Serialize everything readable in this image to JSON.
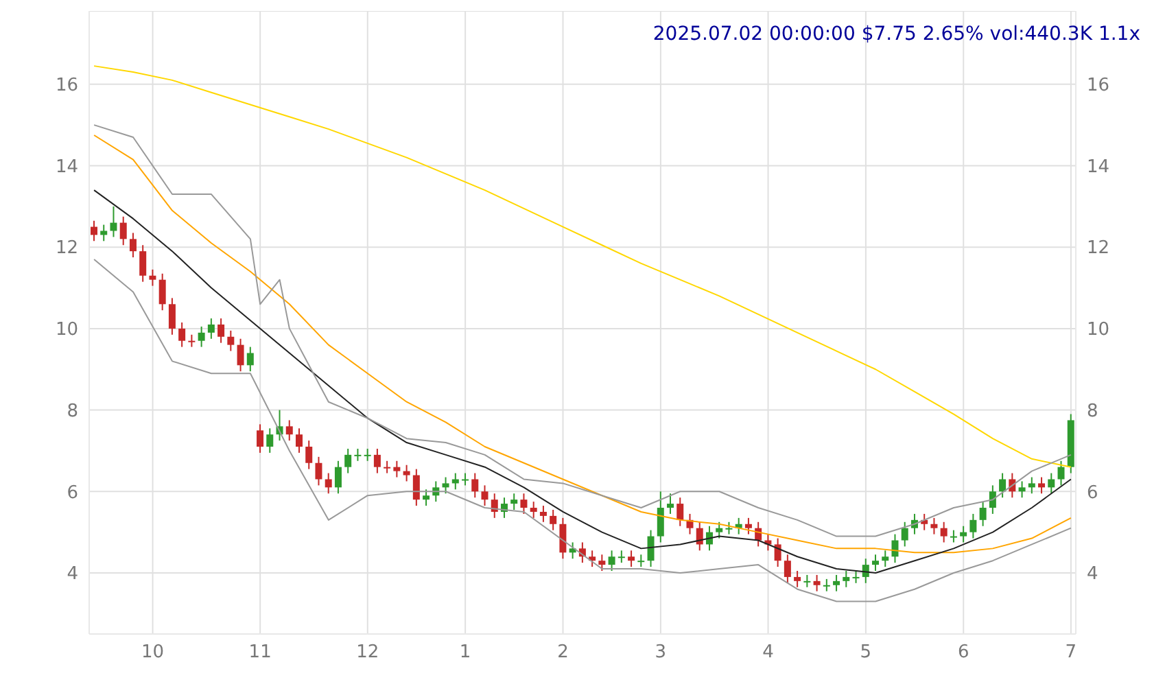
{
  "chart_data": {
    "type": "candlestick",
    "title": "2025.07.02 00:00:00 $7.75 2.65% vol:440.3K 1.1x",
    "categories": [
      null,
      null,
      null,
      null,
      null,
      null,
      "10",
      null,
      null,
      null,
      null,
      null,
      null,
      null,
      null,
      null,
      null,
      "11",
      null,
      null,
      null,
      null,
      null,
      null,
      null,
      null,
      null,
      null,
      "12",
      null,
      null,
      null,
      null,
      null,
      null,
      null,
      null,
      null,
      "1",
      null,
      null,
      null,
      null,
      null,
      null,
      null,
      null,
      null,
      "2",
      null,
      null,
      null,
      null,
      null,
      null,
      null,
      null,
      null,
      "3",
      null,
      null,
      null,
      null,
      null,
      null,
      null,
      null,
      null,
      null,
      "4",
      null,
      null,
      null,
      null,
      null,
      null,
      null,
      null,
      null,
      "5",
      null,
      null,
      null,
      null,
      null,
      null,
      null,
      null,
      null,
      "6",
      null,
      null,
      null,
      null,
      null,
      null,
      null,
      null,
      null,
      null,
      "7"
    ],
    "ohlc": [
      [
        12.5,
        12.65,
        12.15,
        12.3
      ],
      [
        12.3,
        12.55,
        12.15,
        12.4
      ],
      [
        12.4,
        13.0,
        12.25,
        12.6
      ],
      [
        12.6,
        12.75,
        12.05,
        12.2
      ],
      [
        12.2,
        12.35,
        11.75,
        11.9
      ],
      [
        11.9,
        12.05,
        11.15,
        11.3
      ],
      [
        11.3,
        11.45,
        11.05,
        11.2
      ],
      [
        11.2,
        11.35,
        10.45,
        10.6
      ],
      [
        10.6,
        10.75,
        9.85,
        10.0
      ],
      [
        10.0,
        10.15,
        9.55,
        9.7
      ],
      [
        9.7,
        9.85,
        9.55,
        9.7
      ],
      [
        9.7,
        10.05,
        9.55,
        9.9
      ],
      [
        9.9,
        10.25,
        9.75,
        10.1
      ],
      [
        10.1,
        10.25,
        9.65,
        9.8
      ],
      [
        9.8,
        9.95,
        9.45,
        9.6
      ],
      [
        9.6,
        9.75,
        8.95,
        9.1
      ],
      [
        9.1,
        9.55,
        8.95,
        9.4
      ],
      [
        7.5,
        7.65,
        6.95,
        7.1
      ],
      [
        7.1,
        7.55,
        6.95,
        7.4
      ],
      [
        7.4,
        8.0,
        7.25,
        7.6
      ],
      [
        7.6,
        7.75,
        7.25,
        7.4
      ],
      [
        7.4,
        7.55,
        6.95,
        7.1
      ],
      [
        7.1,
        7.25,
        6.55,
        6.7
      ],
      [
        6.7,
        6.85,
        6.15,
        6.3
      ],
      [
        6.3,
        6.45,
        5.95,
        6.1
      ],
      [
        6.1,
        6.75,
        5.95,
        6.6
      ],
      [
        6.6,
        7.05,
        6.45,
        6.9
      ],
      [
        6.9,
        7.05,
        6.75,
        6.9
      ],
      [
        6.9,
        7.05,
        6.75,
        6.9
      ],
      [
        6.9,
        7.05,
        6.45,
        6.6
      ],
      [
        6.6,
        6.75,
        6.45,
        6.6
      ],
      [
        6.6,
        6.75,
        6.35,
        6.5
      ],
      [
        6.5,
        6.65,
        6.25,
        6.4
      ],
      [
        6.4,
        6.55,
        5.65,
        5.8
      ],
      [
        5.8,
        6.05,
        5.65,
        5.9
      ],
      [
        5.9,
        6.25,
        5.75,
        6.1
      ],
      [
        6.1,
        6.35,
        5.95,
        6.2
      ],
      [
        6.2,
        6.45,
        6.05,
        6.3
      ],
      [
        6.3,
        6.45,
        6.15,
        6.3
      ],
      [
        6.3,
        6.45,
        5.85,
        6.0
      ],
      [
        6.0,
        6.15,
        5.65,
        5.8
      ],
      [
        5.8,
        5.95,
        5.35,
        5.5
      ],
      [
        5.5,
        5.85,
        5.35,
        5.7
      ],
      [
        5.7,
        5.95,
        5.55,
        5.8
      ],
      [
        5.8,
        5.95,
        5.45,
        5.6
      ],
      [
        5.6,
        5.75,
        5.35,
        5.5
      ],
      [
        5.5,
        5.65,
        5.25,
        5.4
      ],
      [
        5.4,
        5.55,
        5.05,
        5.2
      ],
      [
        5.2,
        5.35,
        4.35,
        4.5
      ],
      [
        4.5,
        4.75,
        4.35,
        4.6
      ],
      [
        4.6,
        4.75,
        4.25,
        4.4
      ],
      [
        4.4,
        4.55,
        4.15,
        4.3
      ],
      [
        4.3,
        4.45,
        4.05,
        4.2
      ],
      [
        4.2,
        4.55,
        4.05,
        4.4
      ],
      [
        4.4,
        4.55,
        4.25,
        4.4
      ],
      [
        4.4,
        4.55,
        4.15,
        4.3
      ],
      [
        4.3,
        4.45,
        4.15,
        4.3
      ],
      [
        4.3,
        5.05,
        4.15,
        4.9
      ],
      [
        4.9,
        6.0,
        4.75,
        5.6
      ],
      [
        5.6,
        5.95,
        5.45,
        5.7
      ],
      [
        5.7,
        5.85,
        5.15,
        5.3
      ],
      [
        5.3,
        5.45,
        4.95,
        5.1
      ],
      [
        5.1,
        5.25,
        4.55,
        4.7
      ],
      [
        4.7,
        5.15,
        4.55,
        5.0
      ],
      [
        5.0,
        5.25,
        4.85,
        5.1
      ],
      [
        5.1,
        5.25,
        4.95,
        5.1
      ],
      [
        5.1,
        5.35,
        4.95,
        5.2
      ],
      [
        5.2,
        5.35,
        4.95,
        5.1
      ],
      [
        5.1,
        5.25,
        4.65,
        4.8
      ],
      [
        4.8,
        4.95,
        4.55,
        4.7
      ],
      [
        4.7,
        4.85,
        4.15,
        4.3
      ],
      [
        4.3,
        4.45,
        3.75,
        3.9
      ],
      [
        3.9,
        4.05,
        3.65,
        3.8
      ],
      [
        3.8,
        3.95,
        3.65,
        3.8
      ],
      [
        3.8,
        3.95,
        3.55,
        3.7
      ],
      [
        3.7,
        3.85,
        3.55,
        3.7
      ],
      [
        3.7,
        3.95,
        3.55,
        3.8
      ],
      [
        3.8,
        4.05,
        3.65,
        3.9
      ],
      [
        3.9,
        4.05,
        3.75,
        3.9
      ],
      [
        3.9,
        4.35,
        3.75,
        4.2
      ],
      [
        4.2,
        4.45,
        4.05,
        4.3
      ],
      [
        4.3,
        4.55,
        4.15,
        4.4
      ],
      [
        4.4,
        4.95,
        4.25,
        4.8
      ],
      [
        4.8,
        5.25,
        4.65,
        5.1
      ],
      [
        5.1,
        5.45,
        4.95,
        5.3
      ],
      [
        5.3,
        5.45,
        5.05,
        5.2
      ],
      [
        5.2,
        5.35,
        4.95,
        5.1
      ],
      [
        5.1,
        5.25,
        4.75,
        4.9
      ],
      [
        4.9,
        5.05,
        4.75,
        4.9
      ],
      [
        4.9,
        5.15,
        4.75,
        5.0
      ],
      [
        5.0,
        5.45,
        4.85,
        5.3
      ],
      [
        5.3,
        5.75,
        5.15,
        5.6
      ],
      [
        5.6,
        6.15,
        5.45,
        6.0
      ],
      [
        6.0,
        6.45,
        5.85,
        6.3
      ],
      [
        6.3,
        6.45,
        5.85,
        6.0
      ],
      [
        6.0,
        6.25,
        5.85,
        6.1
      ],
      [
        6.1,
        6.35,
        5.95,
        6.2
      ],
      [
        6.2,
        6.35,
        5.95,
        6.1
      ],
      [
        6.1,
        6.45,
        5.95,
        6.3
      ],
      [
        6.3,
        6.75,
        6.15,
        6.6
      ],
      [
        6.6,
        7.9,
        6.45,
        7.75
      ]
    ],
    "colors": [
      "#c62828",
      "#2e9b2e",
      "#2e9b2e",
      "#c62828",
      "#c62828",
      "#c62828",
      "#c62828",
      "#c62828",
      "#c62828",
      "#c62828",
      "#c62828",
      "#2e9b2e",
      "#2e9b2e",
      "#c62828",
      "#c62828",
      "#c62828",
      "#2e9b2e",
      "#c62828",
      "#2e9b2e",
      "#2e9b2e",
      "#c62828",
      "#c62828",
      "#c62828",
      "#c62828",
      "#c62828",
      "#2e9b2e",
      "#2e9b2e",
      "#2e9b2e",
      "#2e9b2e",
      "#c62828",
      "#c62828",
      "#c62828",
      "#c62828",
      "#c62828",
      "#2e9b2e",
      "#2e9b2e",
      "#2e9b2e",
      "#2e9b2e",
      "#2e9b2e",
      "#c62828",
      "#c62828",
      "#c62828",
      "#2e9b2e",
      "#2e9b2e",
      "#c62828",
      "#c62828",
      "#c62828",
      "#c62828",
      "#c62828",
      "#2e9b2e",
      "#c62828",
      "#c62828",
      "#c62828",
      "#2e9b2e",
      "#2e9b2e",
      "#c62828",
      "#2e9b2e",
      "#2e9b2e",
      "#2e9b2e",
      "#2e9b2e",
      "#c62828",
      "#c62828",
      "#c62828",
      "#2e9b2e",
      "#2e9b2e",
      "#2e9b2e",
      "#2e9b2e",
      "#c62828",
      "#c62828",
      "#c62828",
      "#c62828",
      "#c62828",
      "#c62828",
      "#2e9b2e",
      "#c62828",
      "#2e9b2e",
      "#2e9b2e",
      "#2e9b2e",
      "#2e9b2e",
      "#2e9b2e",
      "#2e9b2e",
      "#2e9b2e",
      "#2e9b2e",
      "#2e9b2e",
      "#2e9b2e",
      "#c62828",
      "#c62828",
      "#c62828",
      "#2e9b2e",
      "#2e9b2e",
      "#2e9b2e",
      "#2e9b2e",
      "#2e9b2e",
      "#2e9b2e",
      "#c62828",
      "#2e9b2e",
      "#2e9b2e",
      "#c62828",
      "#2e9b2e",
      "#2e9b2e",
      "#2e9b2e"
    ],
    "series": [
      {
        "type": "line",
        "color": "#ffd700",
        "values": [
          16.45,
          null,
          null,
          null,
          16.3,
          null,
          null,
          null,
          16.1,
          null,
          null,
          null,
          15.8,
          null,
          null,
          null,
          15.5,
          null,
          null,
          null,
          15.2,
          null,
          null,
          null,
          14.9,
          null,
          null,
          null,
          14.55,
          null,
          null,
          null,
          14.2,
          null,
          null,
          null,
          13.8,
          null,
          null,
          null,
          13.4,
          null,
          null,
          null,
          12.95,
          null,
          null,
          null,
          12.5,
          null,
          null,
          null,
          12.05,
          null,
          null,
          null,
          11.6,
          null,
          null,
          null,
          11.2,
          null,
          null,
          null,
          10.8,
          null,
          null,
          null,
          10.35,
          null,
          null,
          null,
          9.9,
          null,
          null,
          null,
          9.45,
          null,
          null,
          null,
          9.0,
          null,
          null,
          null,
          8.45,
          null,
          null,
          null,
          7.9,
          null,
          null,
          null,
          7.3,
          null,
          null,
          null,
          6.8,
          null,
          null,
          null,
          6.6
        ]
      },
      {
        "type": "line",
        "color": "#ffa500",
        "values": [
          14.75,
          null,
          null,
          null,
          14.15,
          null,
          null,
          null,
          12.9,
          null,
          null,
          null,
          12.1,
          null,
          null,
          null,
          11.4,
          null,
          null,
          null,
          10.6,
          null,
          null,
          null,
          9.6,
          null,
          null,
          null,
          8.9,
          null,
          null,
          null,
          8.2,
          null,
          null,
          null,
          7.7,
          null,
          null,
          null,
          7.1,
          null,
          null,
          null,
          6.7,
          null,
          null,
          null,
          6.3,
          null,
          null,
          null,
          5.9,
          null,
          null,
          null,
          5.5,
          null,
          null,
          null,
          5.3,
          null,
          null,
          null,
          5.2,
          null,
          null,
          null,
          5.0,
          null,
          null,
          null,
          4.8,
          null,
          null,
          null,
          4.6,
          null,
          null,
          null,
          4.6,
          null,
          null,
          null,
          4.5,
          null,
          null,
          null,
          4.5,
          null,
          null,
          null,
          4.6,
          null,
          null,
          null,
          4.85,
          null,
          null,
          null,
          5.35
        ]
      },
      {
        "type": "line",
        "color": "#222222",
        "values": [
          13.4,
          null,
          null,
          null,
          12.7,
          null,
          null,
          null,
          11.9,
          null,
          null,
          null,
          11.0,
          null,
          null,
          null,
          10.2,
          null,
          null,
          null,
          9.4,
          null,
          null,
          null,
          8.6,
          null,
          null,
          null,
          7.8,
          null,
          null,
          null,
          7.2,
          null,
          null,
          null,
          6.9,
          null,
          null,
          null,
          6.6,
          null,
          null,
          null,
          6.1,
          null,
          null,
          null,
          5.5,
          null,
          null,
          null,
          5.0,
          null,
          null,
          null,
          4.6,
          null,
          null,
          null,
          4.7,
          null,
          null,
          null,
          4.9,
          null,
          null,
          null,
          4.8,
          null,
          null,
          null,
          4.4,
          null,
          null,
          null,
          4.1,
          null,
          null,
          null,
          4.0,
          null,
          null,
          null,
          4.3,
          null,
          null,
          null,
          4.6,
          null,
          null,
          null,
          5.0,
          null,
          null,
          null,
          5.6,
          null,
          null,
          null,
          6.3
        ]
      },
      {
        "type": "line",
        "color": "#999999",
        "values": [
          15.0,
          null,
          null,
          null,
          14.7,
          null,
          null,
          null,
          13.3,
          null,
          null,
          null,
          13.3,
          null,
          null,
          null,
          12.2,
          10.6,
          null,
          11.2,
          10.0,
          null,
          null,
          null,
          8.2,
          null,
          null,
          null,
          7.8,
          null,
          null,
          null,
          7.3,
          null,
          null,
          null,
          7.2,
          null,
          null,
          null,
          6.9,
          null,
          null,
          null,
          6.3,
          null,
          null,
          null,
          6.2,
          null,
          null,
          null,
          5.9,
          null,
          null,
          null,
          5.6,
          null,
          null,
          null,
          6.0,
          null,
          null,
          null,
          6.0,
          null,
          null,
          null,
          5.6,
          null,
          null,
          null,
          5.3,
          null,
          null,
          null,
          4.9,
          null,
          null,
          null,
          4.9,
          null,
          null,
          null,
          5.2,
          null,
          null,
          null,
          5.6,
          null,
          null,
          null,
          5.8,
          null,
          null,
          null,
          6.5,
          null,
          null,
          null,
          6.9
        ]
      },
      {
        "type": "line",
        "color": "#999999",
        "values": [
          11.7,
          null,
          null,
          null,
          10.9,
          null,
          null,
          null,
          9.2,
          null,
          null,
          null,
          8.9,
          null,
          null,
          null,
          8.9,
          null,
          null,
          null,
          7.0,
          null,
          null,
          null,
          5.3,
          null,
          null,
          null,
          5.9,
          null,
          null,
          null,
          6.0,
          null,
          null,
          null,
          6.0,
          null,
          null,
          null,
          5.6,
          null,
          null,
          null,
          5.5,
          null,
          null,
          null,
          4.8,
          null,
          null,
          null,
          4.1,
          null,
          null,
          null,
          4.1,
          null,
          null,
          null,
          4.0,
          null,
          null,
          null,
          4.1,
          null,
          null,
          null,
          4.2,
          null,
          null,
          null,
          3.6,
          null,
          null,
          null,
          3.3,
          null,
          null,
          null,
          3.3,
          null,
          null,
          null,
          3.6,
          null,
          null,
          null,
          4.0,
          null,
          null,
          null,
          4.3,
          null,
          null,
          null,
          4.7,
          null,
          null,
          null,
          5.1
        ]
      }
    ],
    "ylim": [
      2.5,
      17.8
    ],
    "yticks": [
      4,
      6,
      8,
      10,
      12,
      14,
      16
    ],
    "y2lim": [
      2.5,
      17.8
    ],
    "y2ticks": [
      4,
      6,
      8,
      10,
      12,
      14,
      16
    ],
    "grid": true
  }
}
